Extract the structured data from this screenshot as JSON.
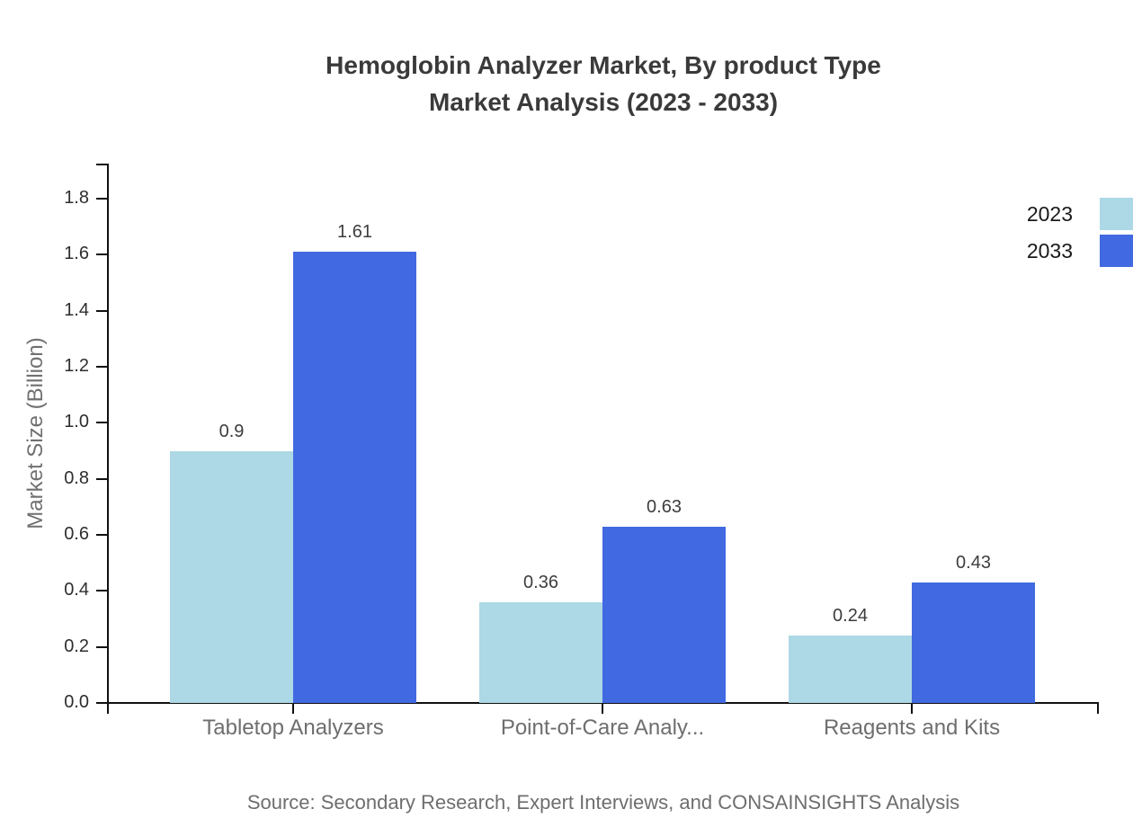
{
  "title": {
    "line1": "Hemoglobin Analyzer Market, By product Type",
    "line2": "Market Analysis (2023 - 2033)"
  },
  "source": "Source: Secondary Research, Expert Interviews, and CONSAINSIGHTS Analysis",
  "chart_data": {
    "type": "bar",
    "title": "Hemoglobin Analyzer Market, By product Type Market Analysis (2023 - 2033)",
    "categories": [
      "Tabletop Analyzers",
      "Point-of-Care Analy...",
      "Reagents and Kits"
    ],
    "series": [
      {
        "name": "2023",
        "color": "#add8e6",
        "values": [
          0.9,
          0.36,
          0.24
        ]
      },
      {
        "name": "2033",
        "color": "#4169e1",
        "values": [
          1.61,
          0.63,
          0.43
        ]
      }
    ],
    "xlabel": "",
    "ylabel": "Market Size (Billion)",
    "ylim": [
      0,
      1.8
    ],
    "ytick_step": 0.2,
    "grid": false,
    "legend_position": "top-right",
    "value_labels": [
      "0.9",
      "1.61",
      "0.36",
      "0.63",
      "0.24",
      "0.43"
    ],
    "ytick_labels": [
      "0.0",
      "0.2",
      "0.4",
      "0.6",
      "0.8",
      "1.0",
      "1.2",
      "1.4",
      "1.6",
      "1.8"
    ]
  }
}
